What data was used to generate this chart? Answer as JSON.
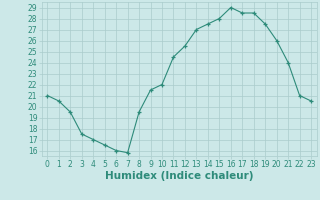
{
  "x": [
    0,
    1,
    2,
    3,
    4,
    5,
    6,
    7,
    8,
    9,
    10,
    11,
    12,
    13,
    14,
    15,
    16,
    17,
    18,
    19,
    20,
    21,
    22,
    23
  ],
  "y": [
    21.0,
    20.5,
    19.5,
    17.5,
    17.0,
    16.5,
    16.0,
    15.8,
    19.5,
    21.5,
    22.0,
    24.5,
    25.5,
    27.0,
    27.5,
    28.0,
    29.0,
    28.5,
    28.5,
    27.5,
    26.0,
    24.0,
    21.0,
    20.5
  ],
  "xlabel": "Humidex (Indice chaleur)",
  "ylim": [
    15.5,
    29.5
  ],
  "xlim": [
    -0.5,
    23.5
  ],
  "yticks": [
    16,
    17,
    18,
    19,
    20,
    21,
    22,
    23,
    24,
    25,
    26,
    27,
    28,
    29
  ],
  "xticks": [
    0,
    1,
    2,
    3,
    4,
    5,
    6,
    7,
    8,
    9,
    10,
    11,
    12,
    13,
    14,
    15,
    16,
    17,
    18,
    19,
    20,
    21,
    22,
    23
  ],
  "line_color": "#2e8b7a",
  "marker_color": "#2e8b7a",
  "bg_color": "#cce8e8",
  "grid_color": "#aacccc",
  "tick_label_fontsize": 5.5,
  "xlabel_fontsize": 7.5,
  "xlabel_fontweight": "bold",
  "tick_color": "#2e8b7a"
}
